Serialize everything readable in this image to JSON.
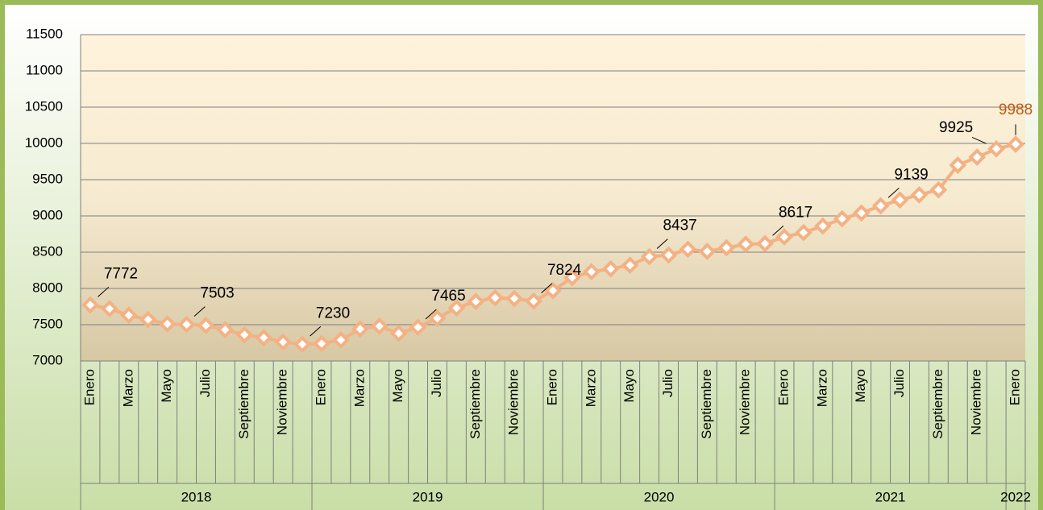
{
  "chart_data": {
    "type": "line",
    "categories": [
      "Enero",
      null,
      "Marzo",
      null,
      "Mayo",
      null,
      "Julio",
      null,
      "Septiembre",
      null,
      "Noviembre",
      null,
      "Enero",
      null,
      "Marzo",
      null,
      "Mayo",
      null,
      "Julio",
      null,
      "Septiembre",
      null,
      "Noviembre",
      null,
      "Enero",
      null,
      "Marzo",
      null,
      "Mayo",
      null,
      "Julio",
      null,
      "Septiembre",
      null,
      "Noviembre",
      null,
      "Enero",
      null,
      "Marzo",
      null,
      "Mayo",
      null,
      "Julio",
      null,
      "Septiembre",
      null,
      "Noviembre",
      null,
      "Enero"
    ],
    "year_groups": [
      {
        "label": "2018",
        "start": 0,
        "count": 12
      },
      {
        "label": "2019",
        "start": 12,
        "count": 12
      },
      {
        "label": "2020",
        "start": 24,
        "count": 12
      },
      {
        "label": "2021",
        "start": 36,
        "count": 12
      },
      {
        "label": "2022",
        "start": 48,
        "count": 1
      }
    ],
    "series": [
      {
        "color": "#f4b183",
        "values": [
          7772,
          7720,
          7630,
          7570,
          7510,
          7503,
          7490,
          7430,
          7360,
          7320,
          7260,
          7230,
          7240,
          7290,
          7440,
          7480,
          7380,
          7465,
          7590,
          7730,
          7820,
          7870,
          7860,
          7824,
          7970,
          8150,
          8230,
          8270,
          8320,
          8437,
          8460,
          8540,
          8510,
          8560,
          8610,
          8617,
          8710,
          8770,
          8860,
          8960,
          9040,
          9139,
          9220,
          9290,
          9360,
          9700,
          9810,
          9925,
          9988
        ],
        "value_labels": [
          "7772",
          null,
          null,
          null,
          null,
          "7503",
          null,
          null,
          null,
          null,
          null,
          "7230",
          null,
          null,
          null,
          null,
          null,
          "7465",
          null,
          null,
          null,
          null,
          null,
          "7824",
          null,
          null,
          null,
          null,
          null,
          "8437",
          null,
          null,
          null,
          null,
          null,
          "8617",
          null,
          null,
          null,
          null,
          null,
          "9139",
          null,
          null,
          null,
          null,
          null,
          "9925",
          "9988"
        ]
      }
    ],
    "last_label_color": "#c55a11",
    "ylim": [
      7000,
      11500
    ],
    "yticks": [
      7000,
      7500,
      8000,
      8500,
      9000,
      9500,
      10000,
      10500,
      11000,
      11500
    ],
    "grid": true
  }
}
